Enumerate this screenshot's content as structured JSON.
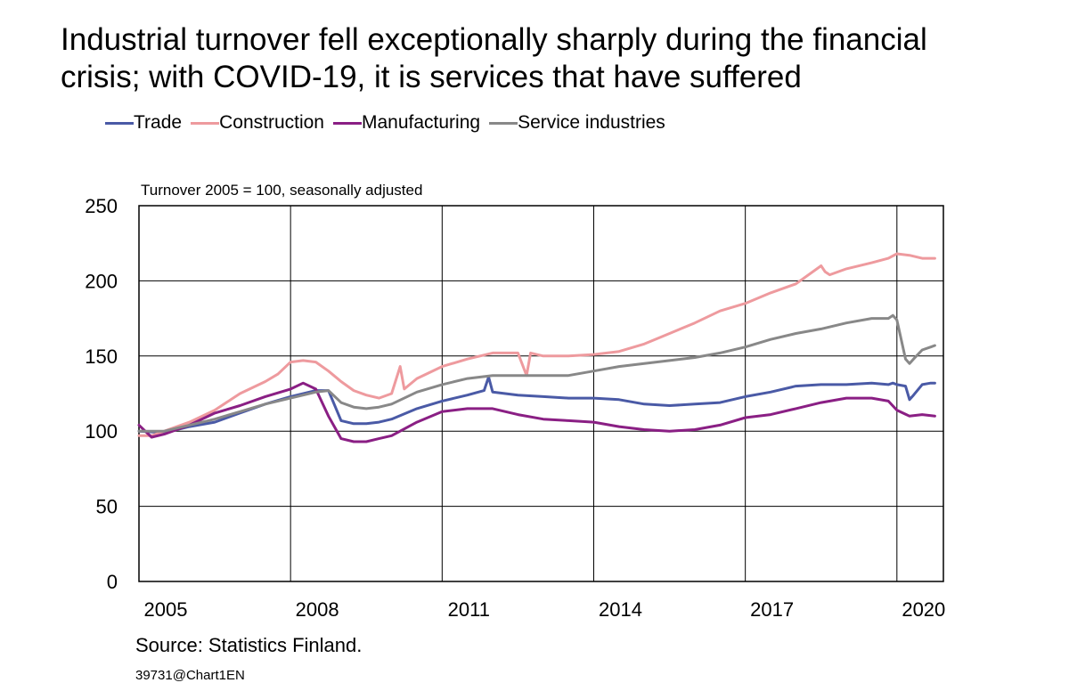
{
  "title_line1": "Industrial turnover fell exceptionally sharply during the financial",
  "title_line2": "crisis; with COVID-19, it is services that have suffered",
  "source": "Source: Statistics Finland.",
  "chart_code": "39731@Chart1EN",
  "chart_data": {
    "type": "line",
    "title": "Industrial turnover fell exceptionally sharply during the financial crisis; with COVID-19, it is services that have suffered",
    "subtitle": "Turnover 2005 = 100, seasonally adjusted",
    "xlabel": "",
    "ylabel": "",
    "xlim": [
      2005.0,
      2020.92
    ],
    "ylim": [
      0,
      250
    ],
    "yticks": [
      0,
      50,
      100,
      150,
      200,
      250
    ],
    "xticks": [
      2005,
      2008,
      2011,
      2014,
      2017,
      2020
    ],
    "vgrid_years": [
      2008,
      2011,
      2014,
      2017,
      2020
    ],
    "hgrid": true,
    "legend_position": "top",
    "series": [
      {
        "name": "Trade",
        "color": "#4a5aa6",
        "x": [
          2005.0,
          2005.5,
          2006.0,
          2006.5,
          2007.0,
          2007.5,
          2008.0,
          2008.5,
          2008.75,
          2009.0,
          2009.25,
          2009.5,
          2009.75,
          2010.0,
          2010.5,
          2011.0,
          2011.5,
          2011.83,
          2011.92,
          2012.0,
          2012.5,
          2013.0,
          2013.5,
          2014.0,
          2014.5,
          2015.0,
          2015.5,
          2016.0,
          2016.5,
          2017.0,
          2017.5,
          2018.0,
          2018.5,
          2019.0,
          2019.5,
          2019.83,
          2019.92,
          2020.0,
          2020.17,
          2020.25,
          2020.33,
          2020.5,
          2020.67,
          2020.75
        ],
        "y": [
          100,
          99,
          103,
          106,
          112,
          118,
          123,
          127,
          127,
          107,
          105,
          105,
          106,
          108,
          115,
          120,
          124,
          127,
          136,
          126,
          124,
          123,
          122,
          122,
          121,
          118,
          117,
          118,
          119,
          123,
          126,
          130,
          131,
          131,
          132,
          131,
          132,
          131,
          130,
          121,
          124,
          131,
          132,
          132
        ]
      },
      {
        "name": "Construction",
        "color": "#ee9a9e",
        "x": [
          2005.0,
          2005.25,
          2005.5,
          2006.0,
          2006.5,
          2007.0,
          2007.5,
          2007.75,
          2008.0,
          2008.25,
          2008.5,
          2008.75,
          2009.0,
          2009.25,
          2009.5,
          2009.75,
          2010.0,
          2010.17,
          2010.25,
          2010.5,
          2011.0,
          2011.5,
          2012.0,
          2012.5,
          2012.67,
          2012.75,
          2013.0,
          2013.5,
          2014.0,
          2014.5,
          2015.0,
          2015.5,
          2016.0,
          2016.5,
          2017.0,
          2017.5,
          2018.0,
          2018.5,
          2018.58,
          2018.67,
          2019.0,
          2019.5,
          2019.83,
          2020.0,
          2020.25,
          2020.5,
          2020.75
        ],
        "y": [
          97,
          97,
          100,
          106,
          114,
          125,
          133,
          138,
          146,
          147,
          146,
          140,
          133,
          127,
          124,
          122,
          125,
          143,
          128,
          135,
          143,
          148,
          152,
          152,
          137,
          152,
          150,
          150,
          151,
          153,
          158,
          165,
          172,
          180,
          185,
          192,
          198,
          210,
          206,
          204,
          208,
          212,
          215,
          218,
          217,
          215,
          215
        ]
      },
      {
        "name": "Manufacturing",
        "color": "#8a1f84",
        "x": [
          2005.0,
          2005.25,
          2005.5,
          2006.0,
          2006.5,
          2007.0,
          2007.5,
          2008.0,
          2008.25,
          2008.5,
          2008.75,
          2009.0,
          2009.25,
          2009.5,
          2009.75,
          2010.0,
          2010.5,
          2011.0,
          2011.5,
          2012.0,
          2012.5,
          2013.0,
          2013.5,
          2014.0,
          2014.5,
          2015.0,
          2015.5,
          2016.0,
          2016.5,
          2017.0,
          2017.5,
          2018.0,
          2018.5,
          2019.0,
          2019.5,
          2019.83,
          2020.0,
          2020.25,
          2020.5,
          2020.75
        ],
        "y": [
          104,
          96,
          98,
          104,
          112,
          117,
          123,
          128,
          132,
          128,
          110,
          95,
          93,
          93,
          95,
          97,
          106,
          113,
          115,
          115,
          111,
          108,
          107,
          106,
          103,
          101,
          100,
          101,
          104,
          109,
          111,
          115,
          119,
          122,
          122,
          120,
          114,
          110,
          111,
          110
        ]
      },
      {
        "name": "Service industries",
        "color": "#888888",
        "x": [
          2005.0,
          2005.5,
          2006.0,
          2006.5,
          2007.0,
          2007.5,
          2008.0,
          2008.5,
          2008.75,
          2009.0,
          2009.25,
          2009.5,
          2009.75,
          2010.0,
          2010.5,
          2011.0,
          2011.5,
          2012.0,
          2012.5,
          2013.0,
          2013.5,
          2014.0,
          2014.5,
          2015.0,
          2015.5,
          2016.0,
          2016.5,
          2017.0,
          2017.5,
          2018.0,
          2018.5,
          2019.0,
          2019.5,
          2019.83,
          2019.92,
          2020.0,
          2020.17,
          2020.25,
          2020.33,
          2020.5,
          2020.67,
          2020.75
        ],
        "y": [
          100,
          100,
          104,
          108,
          113,
          118,
          122,
          126,
          127,
          119,
          116,
          115,
          116,
          118,
          126,
          131,
          135,
          137,
          137,
          137,
          137,
          140,
          143,
          145,
          147,
          149,
          152,
          156,
          161,
          165,
          168,
          172,
          175,
          175,
          177,
          174,
          148,
          145,
          148,
          154,
          156,
          157
        ]
      }
    ]
  }
}
